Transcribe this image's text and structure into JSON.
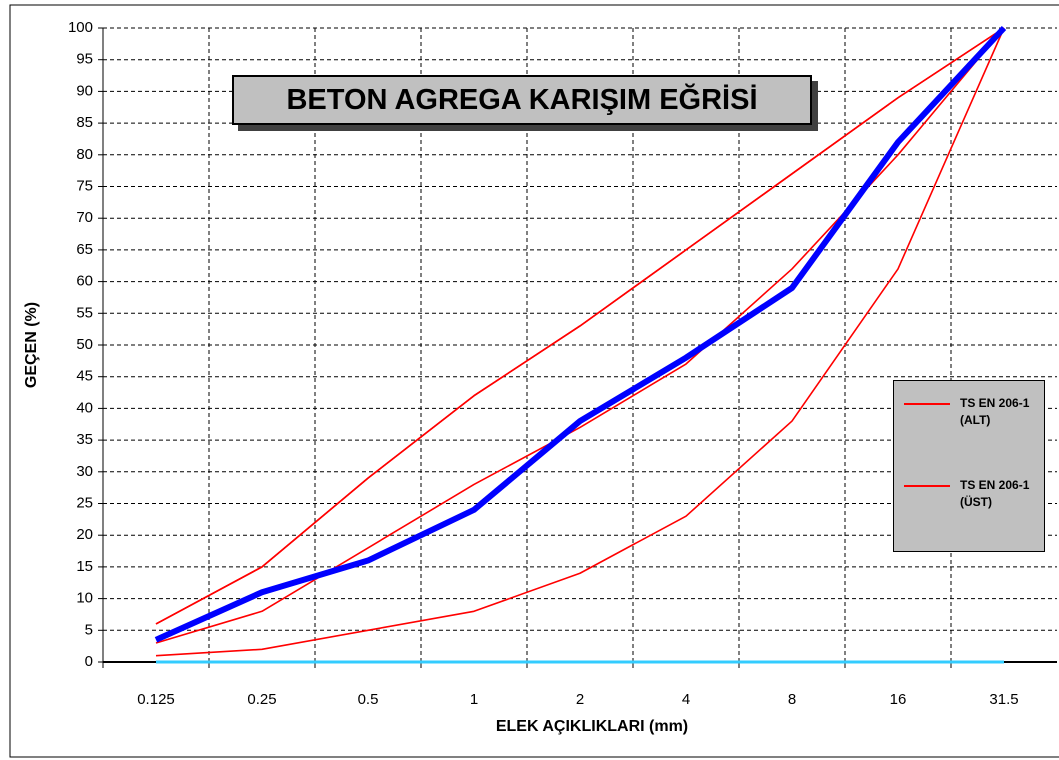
{
  "chart_data": {
    "type": "line",
    "title": "BETON AGREGA KARIŞIM EĞRİSİ",
    "x_label": "ELEK AÇIKLIKLARI (mm)",
    "y_label": "GEÇEN (%)",
    "categories": [
      "0.125",
      "0.25",
      "0.5",
      "1",
      "2",
      "4",
      "8",
      "16",
      "31.5"
    ],
    "series": [
      {
        "color": "#ff0000",
        "values": [
          6,
          15,
          29,
          42,
          53,
          65,
          77,
          89,
          100
        ]
      },
      {
        "color": "#ff0000",
        "values": [
          3,
          8,
          18,
          28,
          37,
          47,
          62,
          80,
          100
        ]
      },
      {
        "name": "TS EN 206-1 (ALT)",
        "color": "#ff0000",
        "values": [
          1,
          2,
          5,
          8,
          14,
          23,
          38,
          62,
          100
        ]
      },
      {
        "name": "TS EN 206-1 (ÜST)",
        "color": "#ff0000",
        "values": [
          6,
          15,
          29,
          42,
          53,
          65,
          77,
          89,
          100
        ]
      },
      {
        "color": "#0000ff",
        "values": [
          3.5,
          11,
          16,
          24,
          38,
          48,
          59,
          82,
          100
        ]
      },
      {
        "color": "#33ccff",
        "values": [
          0,
          0,
          0,
          0,
          0,
          0,
          0,
          0,
          0
        ]
      }
    ],
    "ylim": [
      0,
      100
    ],
    "yticks": [
      0,
      5,
      10,
      15,
      20,
      25,
      30,
      35,
      40,
      45,
      50,
      55,
      60,
      65,
      70,
      75,
      80,
      85,
      90,
      95,
      100
    ],
    "grid": true,
    "legend": "right"
  }
}
